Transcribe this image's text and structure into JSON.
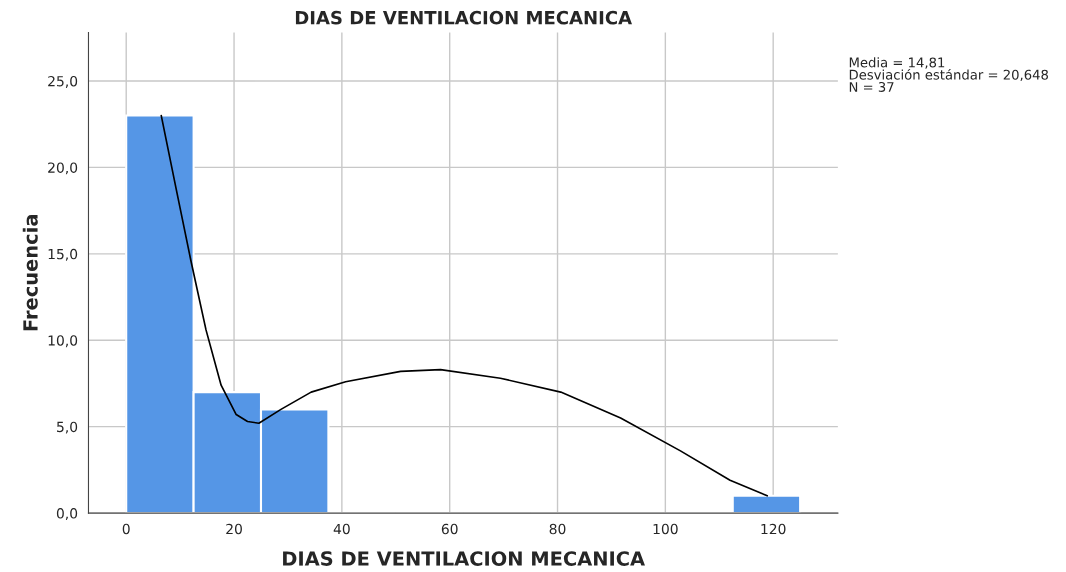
{
  "chart_data": {
    "type": "histogram",
    "title": "DIAS DE VENTILACION MECANICA",
    "xlabel": "DIAS DE VENTILACION MECANICA",
    "ylabel": "Frecuencia",
    "bins": [
      0,
      12.5,
      25,
      37.5,
      50,
      62.5,
      75,
      87.5,
      100,
      112.5,
      125
    ],
    "values": [
      23,
      7,
      6,
      0,
      0,
      0,
      0,
      0,
      0,
      1
    ],
    "color": "#5596e6",
    "series": [
      {
        "type": "line",
        "color": "#000000",
        "x": [
          6.5,
          9.3,
          12.0,
          14.8,
          17.6,
          20.4,
          22.5,
          24.6,
          28.7,
          34.3,
          40.7,
          50.9,
          58.3,
          69.4,
          80.6,
          91.7,
          102.8,
          112,
          118.9
        ],
        "values": [
          23.0,
          18.7,
          14.6,
          10.6,
          7.4,
          5.7,
          5.3,
          5.2,
          6.0,
          7.0,
          7.6,
          8.2,
          8.3,
          7.8,
          7.0,
          5.5,
          3.6,
          1.9,
          1.0
        ]
      }
    ],
    "xlim": [
      -7,
      132
    ],
    "ylim": [
      0,
      27.8
    ],
    "xticks": [
      0,
      20,
      40,
      60,
      80,
      100,
      120
    ],
    "yticks": [
      {
        "value": 0,
        "label": "0,0"
      },
      {
        "value": 5,
        "label": "5,0"
      },
      {
        "value": 10,
        "label": "10,0"
      },
      {
        "value": 15,
        "label": "15,0"
      },
      {
        "value": 20,
        "label": "20,0"
      },
      {
        "value": 25,
        "label": "25,0"
      }
    ],
    "grid": true,
    "annotations": [
      "Media = 14,81\nDesviación estándar = 20,648\nN = 37"
    ]
  }
}
